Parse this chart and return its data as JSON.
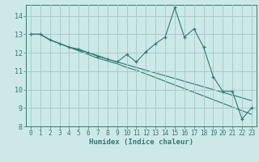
{
  "xlabel": "Humidex (Indice chaleur)",
  "bg_color": "#cce8e8",
  "grid_color": "#aacccc",
  "line_color": "#2e7d6e",
  "xlim": [
    -0.5,
    23.5
  ],
  "ylim": [
    8,
    14.6
  ],
  "yticks": [
    8,
    9,
    10,
    11,
    12,
    13,
    14
  ],
  "xticks": [
    0,
    1,
    2,
    3,
    4,
    5,
    6,
    7,
    8,
    9,
    10,
    11,
    12,
    13,
    14,
    15,
    16,
    17,
    18,
    19,
    20,
    21,
    22,
    23
  ],
  "line1_x": [
    0,
    1,
    2,
    3,
    4,
    5,
    6,
    7,
    8,
    9,
    10,
    11,
    12,
    13,
    14,
    15,
    16,
    17,
    18,
    19,
    20,
    21,
    22,
    23
  ],
  "line1_y": [
    13.0,
    13.0,
    12.7,
    12.5,
    12.3,
    12.2,
    12.0,
    11.8,
    11.65,
    11.5,
    11.9,
    11.5,
    12.05,
    12.5,
    12.85,
    14.45,
    12.85,
    13.3,
    12.3,
    10.7,
    9.9,
    9.9,
    8.4,
    9.0
  ],
  "line2_x": [
    0,
    1,
    2,
    3,
    4,
    5,
    6,
    7,
    8,
    9,
    10,
    11,
    12,
    13,
    14,
    15,
    16,
    17,
    18,
    19,
    20,
    21,
    22,
    23
  ],
  "line2_y": [
    13.0,
    13.0,
    12.7,
    12.5,
    12.3,
    12.15,
    12.0,
    11.85,
    11.65,
    11.5,
    11.35,
    11.2,
    11.05,
    10.9,
    10.75,
    10.6,
    10.45,
    10.3,
    10.15,
    10.0,
    9.85,
    9.7,
    9.55,
    9.4
  ],
  "line3_x": [
    0,
    1,
    2,
    3,
    4,
    5,
    6,
    7,
    8,
    9,
    10,
    11,
    12,
    13,
    14,
    15,
    16,
    17,
    18,
    19,
    20,
    21,
    22,
    23
  ],
  "line3_y": [
    13.0,
    13.0,
    12.7,
    12.5,
    12.3,
    12.1,
    11.9,
    11.7,
    11.55,
    11.4,
    11.2,
    11.05,
    10.85,
    10.65,
    10.45,
    10.25,
    10.05,
    9.85,
    9.65,
    9.45,
    9.25,
    9.05,
    8.85,
    8.65
  ]
}
